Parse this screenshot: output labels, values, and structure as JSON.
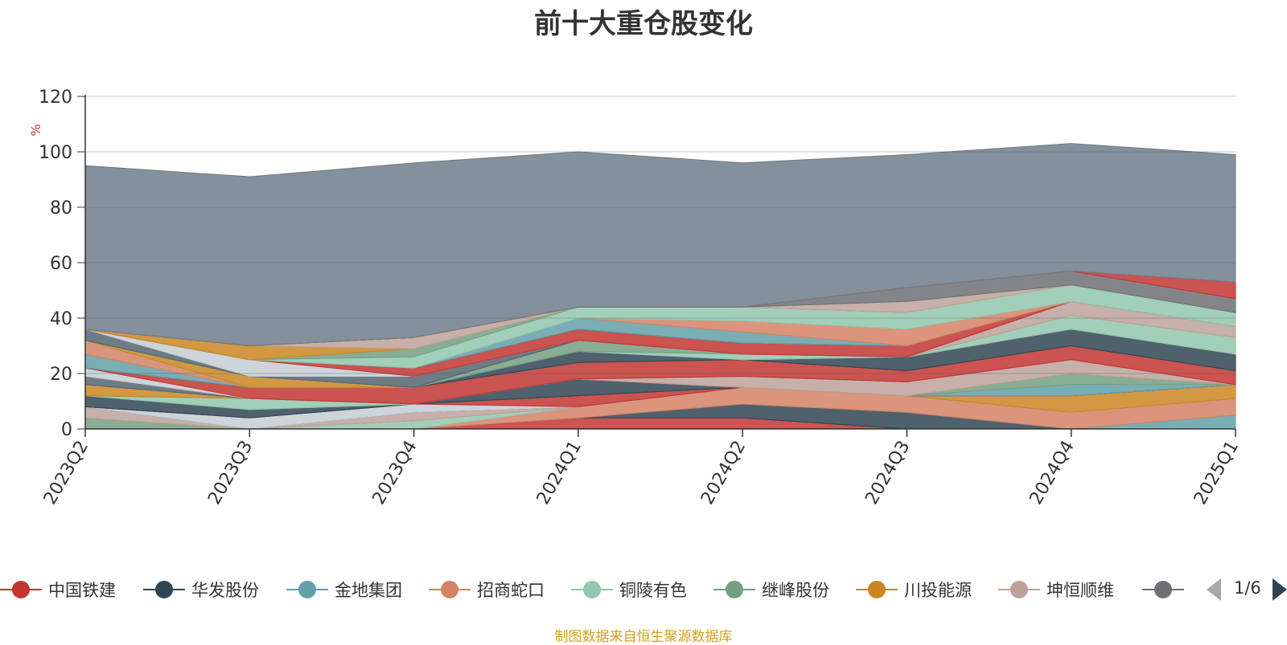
{
  "title": "前十大重仓股变化",
  "source_note": "制图数据来自恒生聚源数据库",
  "legend": {
    "page": "1/6",
    "items": [
      {
        "name": "中国铁建",
        "color": "#c23531"
      },
      {
        "name": "华发股份",
        "color": "#2f4554"
      },
      {
        "name": "金地集团",
        "color": "#61a0a8"
      },
      {
        "name": "招商蛇口",
        "color": "#d48265"
      },
      {
        "name": "铜陵有色",
        "color": "#91c7ae"
      },
      {
        "name": "继峰股份",
        "color": "#749f83"
      },
      {
        "name": "川投能源",
        "color": "#ca8622"
      },
      {
        "name": "坤恒顺维",
        "color": "#bda29a"
      },
      {
        "name": "",
        "color": "#6e7074"
      }
    ]
  },
  "chart_data": {
    "type": "area",
    "stacked": true,
    "ylabel": "%",
    "ylim": [
      0,
      120
    ],
    "yticks": [
      0,
      20,
      40,
      60,
      80,
      100,
      120
    ],
    "grid": true,
    "legend_position": "bottom",
    "x": [
      "2023Q2",
      "2023Q3",
      "2023Q4",
      "2024Q1",
      "2024Q2",
      "2024Q3",
      "2024Q4",
      "2025Q1"
    ],
    "series": [
      {
        "color": "#c23531",
        "values": [
          0,
          0,
          0,
          4,
          4,
          0,
          0,
          0
        ]
      },
      {
        "color": "#2f4554",
        "values": [
          0,
          0,
          0,
          0,
          5,
          6,
          0,
          0
        ]
      },
      {
        "color": "#61a0a8",
        "values": [
          0,
          0,
          0,
          0,
          0,
          0,
          0,
          5
        ]
      },
      {
        "color": "#d48265",
        "values": [
          0,
          0,
          0,
          4,
          6,
          6,
          6,
          6
        ]
      },
      {
        "color": "#91c7ae",
        "values": [
          0,
          0,
          3,
          0,
          0,
          0,
          0,
          0
        ]
      },
      {
        "color": "#749f83",
        "values": [
          4,
          0,
          0,
          0,
          0,
          0,
          0,
          0
        ]
      },
      {
        "color": "#ca8622",
        "values": [
          0,
          0,
          0,
          0,
          0,
          0,
          6,
          5
        ]
      },
      {
        "color": "#bda29a",
        "values": [
          4,
          0,
          3,
          0,
          0,
          0,
          0,
          0
        ]
      },
      {
        "color": "#6e7074",
        "values": [
          0,
          0,
          0,
          0,
          0,
          0,
          0,
          0
        ]
      },
      {
        "color": "#546570",
        "values": [
          0,
          0,
          0,
          0,
          0,
          0,
          0,
          0
        ]
      },
      {
        "color": "#c4ccd3",
        "values": [
          0,
          4,
          3,
          0,
          0,
          0,
          0,
          0
        ]
      },
      {
        "color": "#c23531",
        "values": [
          0,
          0,
          0,
          4,
          0,
          0,
          0,
          0
        ]
      },
      {
        "color": "#2f4554",
        "values": [
          4,
          3,
          0,
          6,
          0,
          0,
          0,
          0
        ]
      },
      {
        "color": "#61a0a8",
        "values": [
          0,
          0,
          0,
          0,
          0,
          0,
          4,
          0
        ]
      },
      {
        "color": "#d48265",
        "values": [
          0,
          0,
          0,
          0,
          0,
          0,
          0,
          0
        ]
      },
      {
        "color": "#91c7ae",
        "values": [
          0,
          4,
          0,
          0,
          0,
          0,
          0,
          0
        ]
      },
      {
        "color": "#749f83",
        "values": [
          0,
          0,
          0,
          0,
          0,
          0,
          4,
          0
        ]
      },
      {
        "color": "#ca8622",
        "values": [
          4,
          0,
          0,
          0,
          0,
          0,
          0,
          0
        ]
      },
      {
        "color": "#bda29a",
        "values": [
          0,
          0,
          0,
          0,
          4,
          5,
          5,
          0
        ]
      },
      {
        "color": "#6e7074",
        "values": [
          0,
          0,
          0,
          0,
          0,
          0,
          0,
          0
        ]
      },
      {
        "color": "#546570",
        "values": [
          3,
          0,
          0,
          0,
          0,
          0,
          0,
          0
        ]
      },
      {
        "color": "#c4ccd3",
        "values": [
          3,
          0,
          0,
          0,
          0,
          0,
          0,
          0
        ]
      },
      {
        "color": "#c23531",
        "values": [
          0,
          4,
          6,
          6,
          6,
          4,
          5,
          5
        ]
      },
      {
        "color": "#2f4554",
        "values": [
          0,
          0,
          0,
          4,
          0,
          5,
          6,
          6
        ]
      },
      {
        "color": "#61a0a8",
        "values": [
          5,
          0,
          0,
          0,
          0,
          0,
          0,
          0
        ]
      },
      {
        "color": "#d48265",
        "values": [
          5,
          0,
          0,
          0,
          0,
          0,
          0,
          0
        ]
      },
      {
        "color": "#91c7ae",
        "values": [
          0,
          0,
          0,
          0,
          2,
          0,
          5,
          6
        ]
      },
      {
        "color": "#749f83",
        "values": [
          0,
          0,
          0,
          4,
          0,
          0,
          0,
          0
        ]
      },
      {
        "color": "#ca8622",
        "values": [
          0,
          4,
          0,
          0,
          0,
          0,
          0,
          0
        ]
      },
      {
        "color": "#bda29a",
        "values": [
          0,
          0,
          0,
          0,
          0,
          0,
          5,
          4
        ]
      },
      {
        "color": "#6e7074",
        "values": [
          0,
          0,
          0,
          0,
          0,
          0,
          0,
          0
        ]
      },
      {
        "color": "#546570",
        "values": [
          4,
          0,
          4,
          0,
          0,
          0,
          0,
          0
        ]
      },
      {
        "color": "#c4ccd3",
        "values": [
          0,
          6,
          0,
          0,
          0,
          0,
          0,
          0
        ]
      },
      {
        "color": "#c23531",
        "values": [
          0,
          0,
          3,
          4,
          4,
          4,
          0,
          0
        ]
      },
      {
        "color": "#2f4554",
        "values": [
          0,
          0,
          0,
          0,
          0,
          0,
          0,
          0
        ]
      },
      {
        "color": "#61a0a8",
        "values": [
          0,
          0,
          0,
          4,
          4,
          0,
          0,
          0
        ]
      },
      {
        "color": "#d48265",
        "values": [
          0,
          0,
          0,
          0,
          4,
          6,
          0,
          0
        ]
      },
      {
        "color": "#91c7ae",
        "values": [
          0,
          0,
          4,
          4,
          5,
          6,
          6,
          5
        ]
      },
      {
        "color": "#749f83",
        "values": [
          0,
          0,
          3,
          0,
          0,
          0,
          0,
          0
        ]
      },
      {
        "color": "#ca8622",
        "values": [
          0,
          5,
          0,
          0,
          0,
          0,
          0,
          0
        ]
      },
      {
        "color": "#bda29a",
        "values": [
          0,
          0,
          4,
          0,
          0,
          4,
          0,
          0
        ]
      },
      {
        "color": "#6e7074",
        "values": [
          0,
          0,
          0,
          0,
          0,
          5,
          5,
          5
        ]
      },
      {
        "color": "#c23531",
        "values": [
          0,
          0,
          0,
          0,
          0,
          0,
          0,
          6
        ]
      },
      {
        "color": "#6e7c88",
        "values": [
          59,
          61,
          63,
          56,
          52,
          48,
          46,
          46
        ]
      }
    ]
  }
}
